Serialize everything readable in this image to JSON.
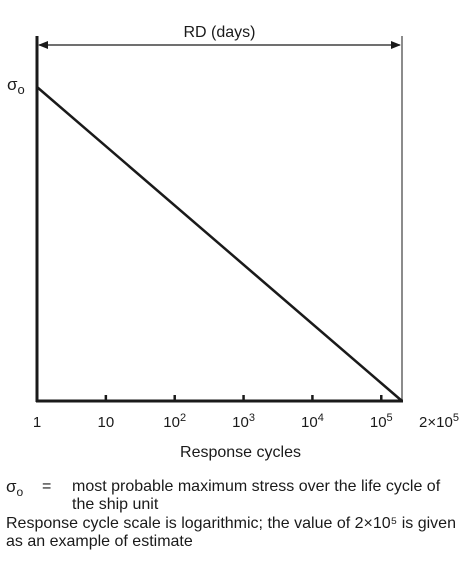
{
  "chart_data": {
    "type": "line",
    "x_scale": "log",
    "y_scale": "linear",
    "xlabel": "Response cycles",
    "ylabel_symbol": "σ",
    "ylabel_subscript": "o",
    "x_ticks": [
      {
        "value": 1,
        "base": "1",
        "exp": ""
      },
      {
        "value": 10,
        "base": "10",
        "exp": ""
      },
      {
        "value": 100,
        "base": "10",
        "exp": "2"
      },
      {
        "value": 1000,
        "base": "10",
        "exp": "3"
      },
      {
        "value": 10000,
        "base": "10",
        "exp": "4"
      },
      {
        "value": 100000,
        "base": "10",
        "exp": "5"
      },
      {
        "value": 200000,
        "base": "2×10",
        "exp": "5"
      }
    ],
    "xlim": [
      1,
      200000
    ],
    "series": [
      {
        "x": [
          1,
          200000
        ],
        "y_relative": [
          1,
          0
        ]
      }
    ],
    "span_annotation": {
      "label": "RD (days)",
      "from": 1,
      "to": 200000
    },
    "grid": false
  },
  "legend": {
    "symbol": "σ",
    "symbol_sub": "o",
    "equals": "=",
    "definition": "most probable maximum stress over the life cycle of the ship unit",
    "note": "Response cycle scale is logarithmic; the value of 2×10⁵ is given as an example of estimate"
  },
  "colors": {
    "ink": "#1a1a1a",
    "background": "#ffffff"
  }
}
